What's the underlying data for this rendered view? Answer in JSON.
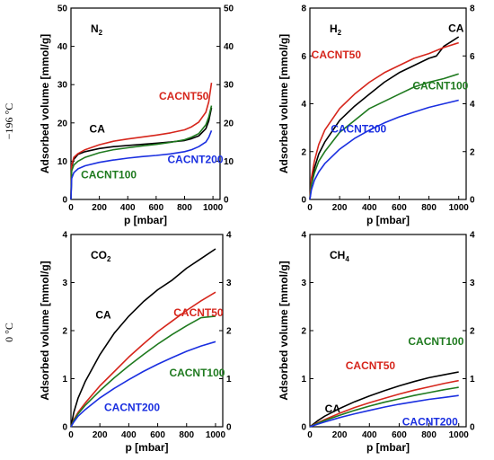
{
  "row_labels": [
    "−196 °C",
    "0 °C"
  ],
  "colors": {
    "CA": "#000000",
    "CACNT50": "#d6261c",
    "CACNT100": "#1f7a1f",
    "CACNT200": "#1a2fe0"
  },
  "chart_data": [
    {
      "type": "line",
      "gas": "N",
      "gas_sub": "2",
      "xlabel": "p [mbar]",
      "ylabel": "Adsorbed volume [mmol/g]",
      "xlim": [
        0,
        1050
      ],
      "ylim": [
        0,
        50
      ],
      "xticks": [
        0,
        200,
        400,
        600,
        800,
        1000
      ],
      "yticks": [
        0,
        10,
        20,
        30,
        40,
        50
      ],
      "y2ticks": [
        0,
        10,
        20,
        30,
        40,
        50
      ],
      "series": [
        {
          "name": "CA",
          "x": [
            0,
            5,
            20,
            50,
            100,
            200,
            300,
            400,
            500,
            600,
            700,
            800,
            850,
            900,
            950,
            970,
            990
          ],
          "y": [
            0,
            8.5,
            10.5,
            11.8,
            12.5,
            13.3,
            13.8,
            14.1,
            14.4,
            14.7,
            15.0,
            15.4,
            15.9,
            16.6,
            18.5,
            20.5,
            24.0
          ]
        },
        {
          "name": "CACNT50",
          "x": [
            0,
            5,
            20,
            50,
            100,
            200,
            300,
            400,
            500,
            600,
            700,
            800,
            850,
            900,
            950,
            970,
            990
          ],
          "y": [
            0,
            9.0,
            11.0,
            12.0,
            13.0,
            14.3,
            15.2,
            15.8,
            16.3,
            16.8,
            17.4,
            18.2,
            19.0,
            20.2,
            22.8,
            25.5,
            30.5
          ]
        },
        {
          "name": "CACNT100",
          "x": [
            0,
            5,
            20,
            50,
            100,
            200,
            300,
            400,
            500,
            600,
            700,
            800,
            850,
            900,
            950,
            970,
            990
          ],
          "y": [
            0,
            7.5,
            9.0,
            10.0,
            11.0,
            12.2,
            13.0,
            13.5,
            14.0,
            14.4,
            14.9,
            15.6,
            16.3,
            17.2,
            19.5,
            21.5,
            24.5
          ]
        },
        {
          "name": "CACNT200",
          "x": [
            0,
            5,
            20,
            50,
            100,
            200,
            300,
            400,
            500,
            600,
            700,
            800,
            850,
            900,
            950,
            970,
            990
          ],
          "y": [
            0,
            5.5,
            7.0,
            8.0,
            8.8,
            9.7,
            10.3,
            10.8,
            11.2,
            11.5,
            11.9,
            12.5,
            13.0,
            13.8,
            15.0,
            16.2,
            18.0
          ]
        }
      ],
      "labels": [
        {
          "text": "CA",
          "series": "CA",
          "x": 130,
          "y": 17.5
        },
        {
          "text": "CACNT50",
          "series": "CACNT50",
          "x": 620,
          "y": 26
        },
        {
          "text": "CACNT100",
          "series": "CACNT100",
          "x": 70,
          "y": 5.5
        },
        {
          "text": "CACNT200",
          "series": "CACNT200",
          "x": 680,
          "y": 9.5
        }
      ]
    },
    {
      "type": "line",
      "gas": "H",
      "gas_sub": "2",
      "xlabel": "p [mbar]",
      "ylabel": "Adsorbed volume [mmol/g]",
      "xlim": [
        0,
        1050
      ],
      "ylim": [
        0,
        8
      ],
      "xticks": [
        0,
        200,
        400,
        600,
        800,
        1000
      ],
      "yticks": [
        0,
        2,
        4,
        6,
        8
      ],
      "y2ticks": [
        0,
        2,
        4,
        6,
        8
      ],
      "series": [
        {
          "name": "CA",
          "x": [
            0,
            10,
            30,
            60,
            100,
            200,
            300,
            400,
            500,
            600,
            700,
            800,
            850,
            900,
            950,
            1000
          ],
          "y": [
            0,
            0.7,
            1.3,
            1.9,
            2.4,
            3.3,
            3.9,
            4.4,
            4.9,
            5.3,
            5.6,
            5.9,
            6.0,
            6.4,
            6.6,
            6.8
          ]
        },
        {
          "name": "CACNT50",
          "x": [
            0,
            10,
            30,
            60,
            100,
            200,
            300,
            400,
            500,
            600,
            700,
            800,
            900,
            1000
          ],
          "y": [
            0,
            0.9,
            1.6,
            2.3,
            2.9,
            3.8,
            4.4,
            4.9,
            5.3,
            5.6,
            5.9,
            6.1,
            6.35,
            6.55
          ]
        },
        {
          "name": "CACNT100",
          "x": [
            0,
            10,
            30,
            60,
            100,
            200,
            300,
            400,
            500,
            600,
            700,
            800,
            900,
            1000
          ],
          "y": [
            0,
            0.6,
            1.1,
            1.6,
            2.0,
            2.8,
            3.3,
            3.8,
            4.1,
            4.4,
            4.7,
            4.9,
            5.05,
            5.25
          ]
        },
        {
          "name": "CACNT200",
          "x": [
            0,
            10,
            30,
            60,
            100,
            200,
            300,
            400,
            500,
            600,
            700,
            800,
            900,
            1000
          ],
          "y": [
            0,
            0.4,
            0.8,
            1.15,
            1.5,
            2.1,
            2.55,
            2.9,
            3.2,
            3.45,
            3.65,
            3.85,
            4.0,
            4.15
          ]
        }
      ],
      "labels": [
        {
          "text": "CA",
          "series": "CA",
          "x": 930,
          "y": 7.0
        },
        {
          "text": "CACNT50",
          "series": "CACNT50",
          "x": 10,
          "y": 5.9
        },
        {
          "text": "CACNT100",
          "series": "CACNT100",
          "x": 690,
          "y": 4.6
        },
        {
          "text": "CACNT200",
          "series": "CACNT200",
          "x": 140,
          "y": 2.8
        }
      ]
    },
    {
      "type": "line",
      "gas": "CO",
      "gas_sub": "2",
      "xlabel": "p [mbar]",
      "ylabel": "Adsorbed volume [mmol/g]",
      "xlim": [
        0,
        1050
      ],
      "ylim": [
        0,
        4
      ],
      "xticks": [
        0,
        200,
        400,
        600,
        800,
        1000
      ],
      "yticks": [
        0,
        1,
        2,
        3,
        4
      ],
      "y2ticks": [
        0,
        1,
        2,
        3,
        4
      ],
      "series": [
        {
          "name": "CA",
          "x": [
            0,
            20,
            50,
            100,
            200,
            300,
            400,
            500,
            600,
            700,
            800,
            900,
            1000
          ],
          "y": [
            0,
            0.3,
            0.6,
            0.95,
            1.5,
            1.95,
            2.3,
            2.6,
            2.85,
            3.05,
            3.3,
            3.5,
            3.7
          ]
        },
        {
          "name": "CACNT50",
          "x": [
            0,
            20,
            50,
            100,
            200,
            300,
            400,
            500,
            600,
            700,
            800,
            900,
            1000
          ],
          "y": [
            0,
            0.15,
            0.3,
            0.5,
            0.85,
            1.15,
            1.45,
            1.72,
            1.98,
            2.2,
            2.42,
            2.62,
            2.8
          ]
        },
        {
          "name": "CACNT100",
          "x": [
            0,
            20,
            50,
            100,
            200,
            300,
            400,
            500,
            600,
            700,
            800,
            900,
            1000
          ],
          "y": [
            0,
            0.13,
            0.27,
            0.45,
            0.75,
            1.02,
            1.27,
            1.5,
            1.72,
            1.92,
            2.1,
            2.27,
            2.3
          ]
        },
        {
          "name": "CACNT200",
          "x": [
            0,
            20,
            50,
            100,
            200,
            300,
            400,
            500,
            600,
            700,
            800,
            900,
            1000
          ],
          "y": [
            0,
            0.1,
            0.22,
            0.36,
            0.6,
            0.8,
            0.98,
            1.15,
            1.3,
            1.44,
            1.57,
            1.68,
            1.77
          ]
        }
      ],
      "labels": [
        {
          "text": "CA",
          "series": "CA",
          "x": 170,
          "y": 2.25
        },
        {
          "text": "CACNT50",
          "series": "CACNT50",
          "x": 710,
          "y": 2.3
        },
        {
          "text": "CACNT100",
          "series": "CACNT100",
          "x": 680,
          "y": 1.05
        },
        {
          "text": "CACNT200",
          "series": "CACNT200",
          "x": 230,
          "y": 0.33
        }
      ]
    },
    {
      "type": "line",
      "gas": "CH",
      "gas_sub": "4",
      "xlabel": "p [mbar]",
      "ylabel": "Adsorbed volume [mmol/g]",
      "xlim": [
        0,
        1050
      ],
      "ylim": [
        0,
        4
      ],
      "xticks": [
        0,
        200,
        400,
        600,
        800,
        1000
      ],
      "yticks": [
        0,
        1,
        2,
        3,
        4
      ],
      "y2ticks": [
        0,
        1,
        2,
        3,
        4
      ],
      "series": [
        {
          "name": "CA",
          "x": [
            0,
            50,
            100,
            200,
            300,
            400,
            500,
            600,
            700,
            800,
            900,
            1000
          ],
          "y": [
            0,
            0.12,
            0.22,
            0.38,
            0.52,
            0.64,
            0.75,
            0.85,
            0.94,
            1.02,
            1.08,
            1.14
          ]
        },
        {
          "name": "CACNT50",
          "x": [
            0,
            50,
            100,
            200,
            300,
            400,
            500,
            600,
            700,
            800,
            900,
            1000
          ],
          "y": [
            0,
            0.08,
            0.15,
            0.28,
            0.4,
            0.5,
            0.59,
            0.68,
            0.76,
            0.83,
            0.9,
            0.96
          ]
        },
        {
          "name": "CACNT100",
          "x": [
            0,
            50,
            100,
            200,
            300,
            400,
            500,
            600,
            700,
            800,
            900,
            1000
          ],
          "y": [
            0,
            0.07,
            0.13,
            0.24,
            0.34,
            0.43,
            0.51,
            0.58,
            0.65,
            0.71,
            0.77,
            0.82
          ]
        },
        {
          "name": "CACNT200",
          "x": [
            0,
            50,
            100,
            200,
            300,
            400,
            500,
            600,
            700,
            800,
            900,
            1000
          ],
          "y": [
            0,
            0.05,
            0.1,
            0.19,
            0.27,
            0.34,
            0.41,
            0.47,
            0.52,
            0.57,
            0.61,
            0.65
          ]
        }
      ],
      "labels": [
        {
          "text": "CA",
          "series": "CA",
          "x": 100,
          "y": 0.3
        },
        {
          "text": "CACNT50",
          "series": "CACNT50",
          "x": 240,
          "y": 1.2
        },
        {
          "text": "CACNT100",
          "series": "CACNT100",
          "x": 660,
          "y": 1.7
        },
        {
          "text": "CACNT200",
          "series": "CACNT200",
          "x": 620,
          "y": 0.03
        }
      ]
    }
  ]
}
